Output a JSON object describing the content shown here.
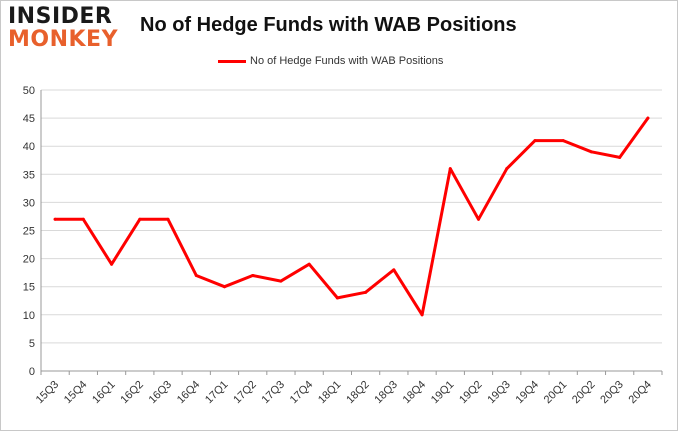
{
  "logo": {
    "line1": "INSIDER",
    "line2": "MONKEY"
  },
  "chart_data": {
    "type": "line",
    "title": "No of Hedge Funds with WAB Positions",
    "xlabel": "",
    "ylabel": "",
    "categories": [
      "15Q3",
      "15Q4",
      "16Q1",
      "16Q2",
      "16Q3",
      "16Q4",
      "17Q1",
      "17Q2",
      "17Q3",
      "17Q4",
      "18Q1",
      "18Q2",
      "18Q3",
      "18Q4",
      "19Q1",
      "19Q2",
      "19Q3",
      "19Q4",
      "20Q1",
      "20Q2",
      "20Q3",
      "20Q4"
    ],
    "series": [
      {
        "name": "No of Hedge Funds with WAB Positions",
        "values": [
          27,
          27,
          19,
          27,
          27,
          17,
          15,
          17,
          16,
          19,
          13,
          14,
          18,
          10,
          36,
          27,
          36,
          41,
          41,
          39,
          38,
          45
        ],
        "color": "#ff0000"
      }
    ],
    "ylim": [
      0,
      50
    ],
    "yticks": [
      0,
      5,
      10,
      15,
      20,
      25,
      30,
      35,
      40,
      45,
      50
    ],
    "grid": true,
    "legend": "top"
  }
}
